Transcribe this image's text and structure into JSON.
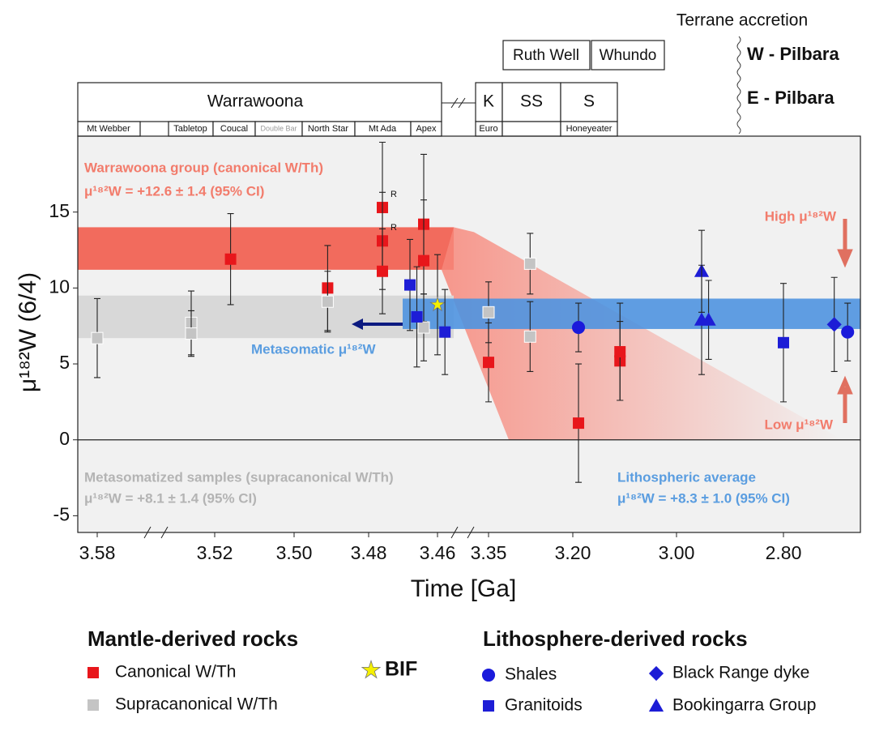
{
  "chart_data": {
    "type": "scatter",
    "y_label": "μ¹⁸²W (6/4)",
    "x_label": "Time [Ga]",
    "ylim": [
      -6.1,
      20
    ],
    "yticks": [
      -5,
      0,
      5,
      10,
      15
    ],
    "xticks": [
      {
        "value": 3.58,
        "label": "3.58"
      },
      {
        "value": 3.52,
        "label": "3.52"
      },
      {
        "value": 3.5,
        "label": "3.50"
      },
      {
        "value": 3.48,
        "label": "3.48"
      },
      {
        "value": 3.46,
        "label": "3.46"
      },
      {
        "value": 3.35,
        "label": "3.35"
      },
      {
        "value": 3.2,
        "label": "3.20"
      },
      {
        "value": 3.0,
        "label": "3.00"
      },
      {
        "value": 2.8,
        "label": "2.80"
      }
    ],
    "series": [
      {
        "name": "Canonical W/Th",
        "color": "#e8161b",
        "marker": "square",
        "x": [
          3.516,
          3.491,
          3.476,
          3.476,
          3.476,
          3.464,
          3.464,
          3.35,
          3.189,
          3.109,
          3.109
        ],
        "values": [
          11.9,
          10.0,
          15.3,
          13.1,
          11.1,
          14.2,
          11.8,
          5.1,
          1.1,
          5.2,
          5.8
        ],
        "errors": [
          3.0,
          2.8,
          4.3,
          3.2,
          2.8,
          4.6,
          4.0,
          2.6,
          3.9,
          2.6,
          3.2
        ]
      },
      {
        "name": "Supracanonical W/Th",
        "color": "#c4c4c4",
        "marker": "square",
        "x": [
          3.58,
          3.532,
          3.532,
          3.491,
          3.464,
          3.35,
          3.276,
          3.276
        ],
        "values": [
          6.7,
          7.7,
          7.0,
          9.1,
          7.4,
          8.4,
          11.6,
          6.8
        ],
        "errors": [
          2.6,
          2.1,
          1.5,
          2.0,
          2.2,
          2.0,
          2.0,
          2.3
        ]
      },
      {
        "name": "BIF",
        "color": "#f5f000",
        "marker": "star",
        "x": [
          3.46
        ],
        "values": [
          8.9
        ],
        "errors": [
          3.3
        ]
      },
      {
        "name": "Shales",
        "color": "#1a1adb",
        "marker": "circle",
        "x": [
          3.189,
          2.68
        ],
        "values": [
          7.4,
          7.1
        ],
        "errors": [
          1.6,
          1.9
        ]
      },
      {
        "name": "Granitoids",
        "color": "#1d1dd6",
        "marker": "square",
        "x": [
          3.468,
          3.466,
          3.444,
          2.8
        ],
        "values": [
          10.2,
          8.1,
          7.1,
          6.4
        ],
        "errors": [
          3.0,
          3.3,
          2.8,
          3.9
        ]
      },
      {
        "name": "Black Range dyke",
        "color": "#1d1dd6",
        "marker": "diamond",
        "x": [
          2.705
        ],
        "values": [
          7.6
        ],
        "errors": [
          3.1
        ]
      },
      {
        "name": "Bookingarra Group",
        "color": "#1d1dd6",
        "marker": "triangle",
        "x": [
          2.953,
          2.953,
          2.94
        ],
        "values": [
          11.1,
          7.9,
          7.9
        ],
        "errors": [
          2.7,
          3.6,
          2.6
        ]
      }
    ],
    "bands": [
      {
        "center": 12.6,
        "ci": 1.4,
        "color": "#f25c4c"
      },
      {
        "center": 8.1,
        "ci": 1.4,
        "color": "#d8d8d8"
      },
      {
        "center": 8.3,
        "ci": 1.0,
        "color": "#4f94e0"
      }
    ],
    "annotations": {
      "warrawoona_group": "Warrawoona group (canonical W/Th)",
      "warrawoona_value": "μ¹⁸²W = +12.6 ± 1.4 (95% CI)",
      "metasomatic": "Metasomatic μ¹⁸²W",
      "metasomatized": "Metasomatized samples (supracanonical W/Th)",
      "metasomatized_value": "μ¹⁸²W = +8.1 ± 1.4 (95% CI)",
      "lithospheric": "Lithospheric average",
      "lithospheric_value": "μ¹⁸²W = +8.3 ± 1.0 (95% CI)",
      "high": "High μ¹⁸²W",
      "low": "Low μ¹⁸²W",
      "r_labels": [
        "R",
        "R"
      ]
    },
    "header": {
      "groups": [
        "Warrawoona",
        "K",
        "SS",
        "S"
      ],
      "upper": [
        "Ruth Well",
        "Whundo"
      ],
      "formations": [
        "Mt Webber",
        "Tabletop",
        "Coucal",
        "Double Bar",
        "North Star",
        "Mt Ada",
        "Apex",
        "Euro",
        "Honeyeater"
      ],
      "terrane": "Terrane accretion",
      "west": "W - Pilbara",
      "east": "E - Pilbara"
    },
    "legend": {
      "mantle": "Mantle-derived rocks",
      "lithosphere": "Lithosphere-derived rocks"
    }
  }
}
